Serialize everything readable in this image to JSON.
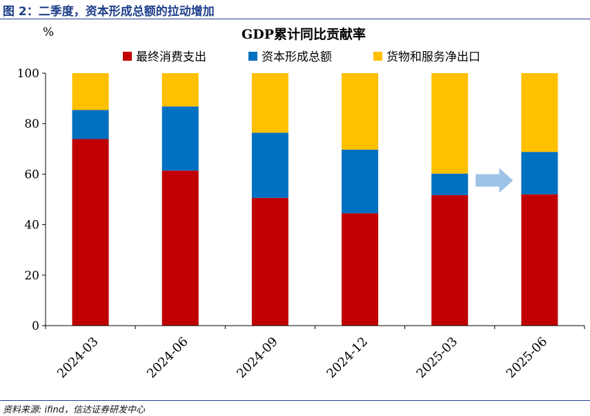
{
  "figure": {
    "title": "图 2：二季度，资本形成总额的拉动增加",
    "source": "资料来源: ifind，信达证券研发中心"
  },
  "chart_data": {
    "type": "bar",
    "stacked": true,
    "title": "GDP累计同比贡献率",
    "y_unit_label": "%",
    "xlabel": "",
    "ylabel": "",
    "ylim": [
      0,
      100
    ],
    "yticks": [
      0,
      20,
      40,
      60,
      80,
      100
    ],
    "grid": false,
    "legend_position": "top",
    "categories": [
      "2024-03",
      "2024-06",
      "2024-09",
      "2024-12",
      "2025-03",
      "2025-06"
    ],
    "series": [
      {
        "name": "最终消费支出",
        "color": "#c00000",
        "values": [
          73.9,
          61.4,
          50.6,
          44.5,
          51.7,
          52.0
        ]
      },
      {
        "name": "资本形成总额",
        "color": "#0070c0",
        "values": [
          11.5,
          25.4,
          25.8,
          25.2,
          8.5,
          16.8
        ]
      },
      {
        "name": "货物和服务净出口",
        "color": "#ffc000",
        "values": [
          14.6,
          13.2,
          23.6,
          30.3,
          39.8,
          31.2
        ]
      }
    ],
    "annotation": {
      "type": "arrow",
      "direction": "right",
      "color": "#9dc3e6",
      "between": [
        "2025-03",
        "2025-06"
      ]
    }
  }
}
